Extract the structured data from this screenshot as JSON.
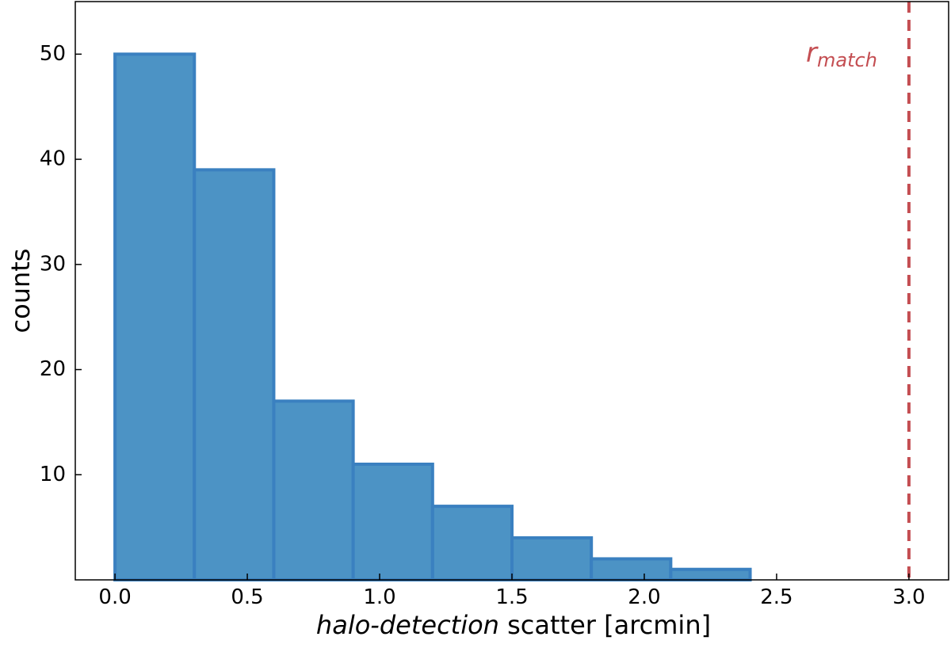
{
  "chart_data": {
    "type": "histogram",
    "xlabel": {
      "italic": "halo-detection",
      "rest": "scatter [arcmin]"
    },
    "ylabel": "counts",
    "bins": [
      0.0,
      0.3,
      0.6,
      0.9,
      1.2,
      1.5,
      1.8,
      2.1,
      2.4,
      2.7,
      3.0
    ],
    "counts": [
      50,
      39,
      17,
      11,
      7,
      4,
      2,
      1,
      0,
      0
    ],
    "color": "#4c93c5",
    "edgecolor": "#3a80c0",
    "xlim": [
      -0.15,
      3.15
    ],
    "ylim": [
      0,
      55
    ],
    "xticks": [
      {
        "value": 0,
        "label": "0.0"
      },
      {
        "value": 0.5,
        "label": "0.5"
      },
      {
        "value": 1,
        "label": "1.0"
      },
      {
        "value": 1.5,
        "label": "1.5"
      },
      {
        "value": 2,
        "label": "2.0"
      },
      {
        "value": 2.5,
        "label": "2.5"
      },
      {
        "value": 3,
        "label": "3.0"
      }
    ],
    "yticks": [
      10,
      20,
      30,
      40,
      50
    ],
    "grid": false,
    "vline": {
      "x": 3.0,
      "color": "#c44e52",
      "label": "r",
      "label_subscript": "match"
    }
  }
}
